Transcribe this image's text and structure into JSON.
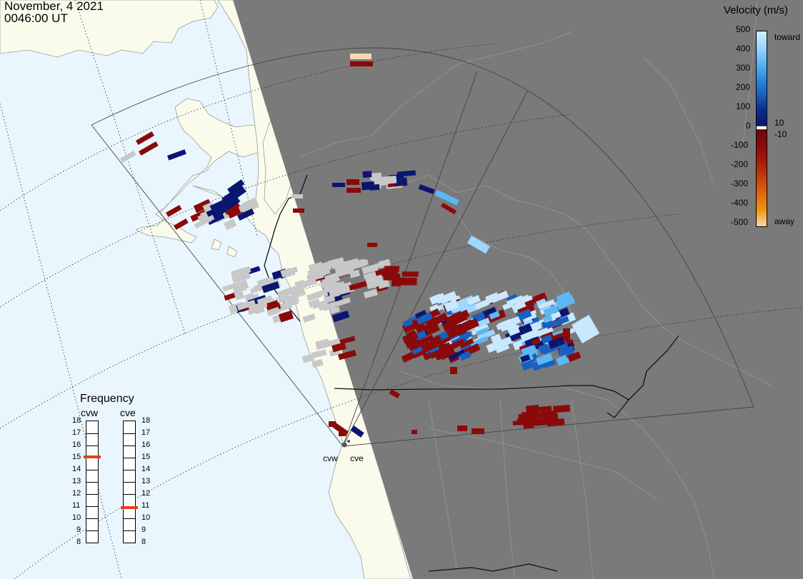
{
  "header": {
    "date": "November, 4 2021",
    "time": "0046:00 UT"
  },
  "colors": {
    "ocean": "#eaf6fd",
    "land": "#fbfbec",
    "night": "#7a7a7a",
    "ground_scatter": "#c8c8c8"
  },
  "velocity_legend": {
    "title": "Velocity (m/s)",
    "ticks": [
      "500",
      "400",
      "300",
      "200",
      "100",
      "0",
      "-100",
      "-200",
      "-300",
      "-400",
      "-500"
    ],
    "near_zero_labels": [
      "10",
      "-10"
    ],
    "toward_label": "toward",
    "away_label": "away",
    "colors_toward": [
      "#d4ecff",
      "#9fd7ff",
      "#5cb8f5",
      "#2a8de0",
      "#1a5fc0",
      "#0a2c8c",
      "#0a1670"
    ],
    "colors_away": [
      "#6e0606",
      "#8a0a0a",
      "#a81c0a",
      "#c8400a",
      "#e06a0a",
      "#f0980f",
      "#fdd5b0"
    ]
  },
  "frequency": {
    "title": "Frequency",
    "radars": [
      {
        "name": "cvw",
        "value": 15
      },
      {
        "name": "cve",
        "value": 10.8
      }
    ],
    "tick_labels": [
      "18",
      "17",
      "16",
      "15",
      "14",
      "13",
      "12",
      "11",
      "10",
      "9",
      "8"
    ]
  },
  "sites": [
    {
      "name": "cvw"
    },
    {
      "name": "cve"
    }
  ]
}
